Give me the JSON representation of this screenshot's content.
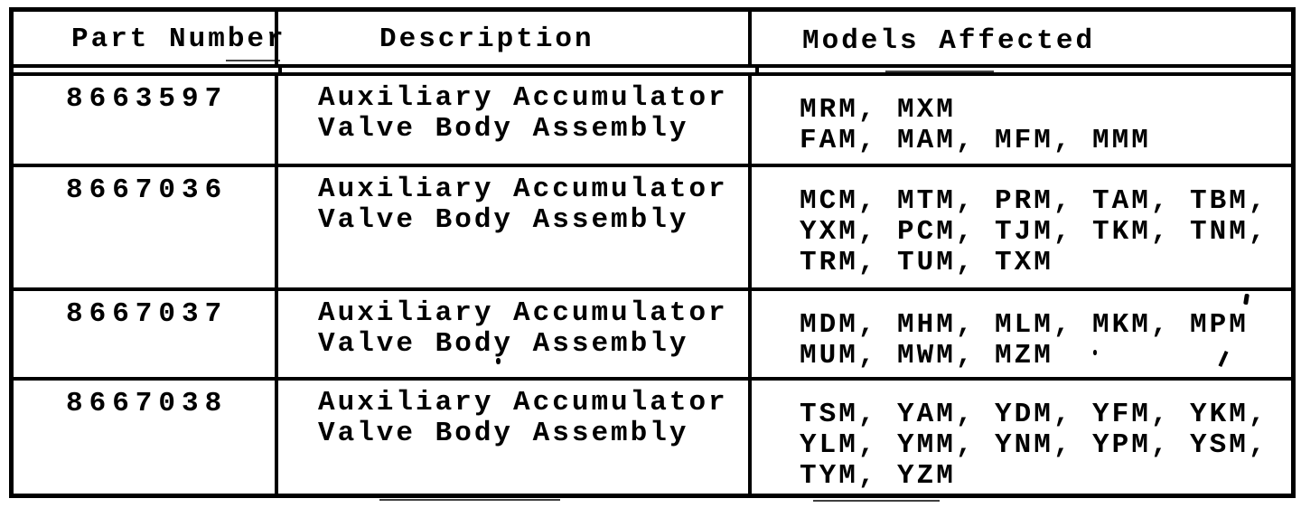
{
  "document": {
    "kind": "scanned-parts-table",
    "ink_color": "#000000",
    "paper_color": "#ffffff"
  },
  "table": {
    "columns": [
      "Part Number",
      "Description",
      "Models Affected"
    ],
    "rows": [
      {
        "part_number": "8663597",
        "description": [
          "Auxiliary Accumulator",
          "Valve Body Assembly"
        ],
        "models": [
          "MRM, MXM",
          "FAM, MAM, MFM, MMM"
        ]
      },
      {
        "part_number": "8667036",
        "description": [
          "Auxiliary Accumulator",
          "Valve Body Assembly"
        ],
        "models": [
          "MCM, MTM, PRM, TAM, TBM,",
          "YXM, PCM, TJM, TKM, TNM,",
          "TRM, TUM, TXM"
        ]
      },
      {
        "part_number": "8667037",
        "description": [
          "Auxiliary Accumulator",
          "Valve Body Assembly"
        ],
        "models": [
          "MDM, MHM, MLM, MKM, MPM",
          "MUM, MWM, MZM"
        ]
      },
      {
        "part_number": "8667038",
        "description": [
          "Auxiliary Accumulator",
          "Valve Body Assembly"
        ],
        "models": [
          "TSM, YAM, YDM, YFM, YKM,",
          "YLM, YMM, YNM, YPM, YSM,",
          "TYM, YZM"
        ]
      }
    ]
  }
}
